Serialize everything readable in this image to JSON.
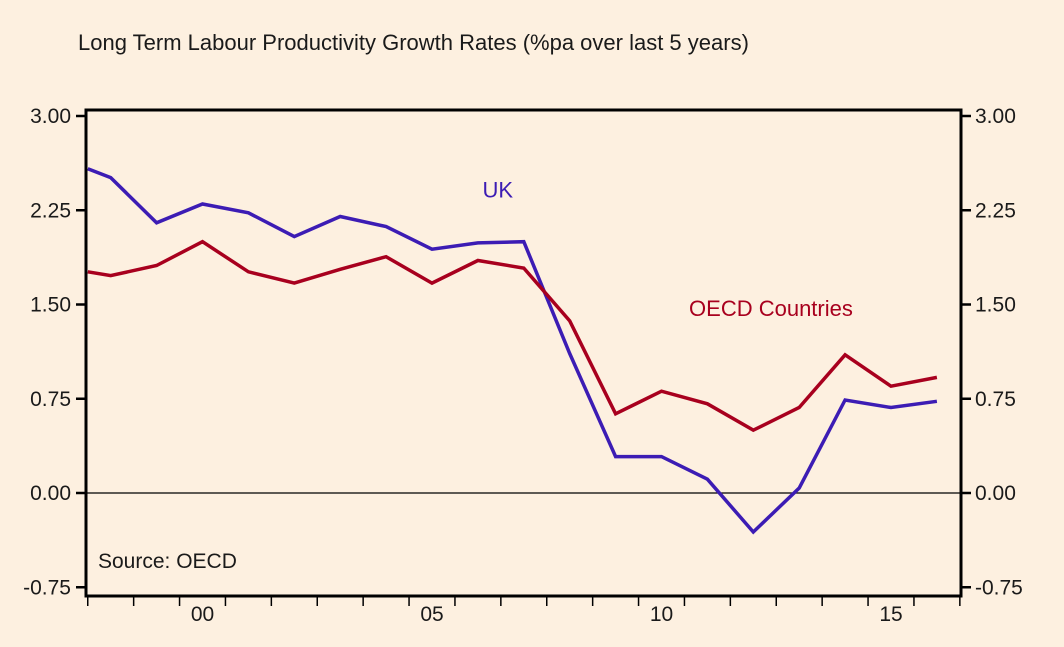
{
  "chart_data": {
    "type": "line",
    "title": "Long Term Labour Productivity Growth Rates (%pa over last 5 years)",
    "xlabel": "",
    "ylabel": "",
    "source": "Source:  OECD",
    "ylim": [
      -0.75,
      3.0
    ],
    "xlim": [
      1997.5,
      2016.5
    ],
    "yticks": [
      3.0,
      2.25,
      1.5,
      0.75,
      0.0,
      -0.75
    ],
    "ytick_labels": [
      "3.00",
      "2.25",
      "1.50",
      "0.75",
      "0.00",
      "-0.75"
    ],
    "xtick_labels": [
      {
        "label": "00",
        "year": 2000
      },
      {
        "label": "05",
        "year": 2005
      },
      {
        "label": "10",
        "year": 2010
      },
      {
        "label": "15",
        "year": 2015
      }
    ],
    "grid": false,
    "zero_line": true,
    "dual_y_axis": true,
    "x": [
      1997.5,
      1998,
      1999,
      2000,
      2001,
      2002,
      2003,
      2004,
      2005,
      2006,
      2007,
      2008,
      2009,
      2010,
      2011,
      2012,
      2013,
      2014,
      2015,
      2016
    ],
    "series": [
      {
        "name": "UK",
        "color": "#3c1cb4",
        "label_pos": {
          "x": 2006.1,
          "y": 2.35
        },
        "values": [
          2.58,
          2.51,
          2.15,
          2.3,
          2.23,
          2.04,
          2.2,
          2.12,
          1.94,
          1.99,
          2.0,
          1.11,
          0.29,
          0.29,
          0.11,
          -0.31,
          0.04,
          0.74,
          0.68,
          0.73
        ]
      },
      {
        "name": "OECD Countries",
        "color": "#a8001e",
        "label_pos": {
          "x": 2010.6,
          "y": 1.41
        },
        "values": [
          1.76,
          1.73,
          1.81,
          2.0,
          1.76,
          1.67,
          1.78,
          1.88,
          1.67,
          1.85,
          1.79,
          1.37,
          0.63,
          0.81,
          0.71,
          0.5,
          0.68,
          1.1,
          0.85,
          0.92
        ]
      }
    ]
  }
}
